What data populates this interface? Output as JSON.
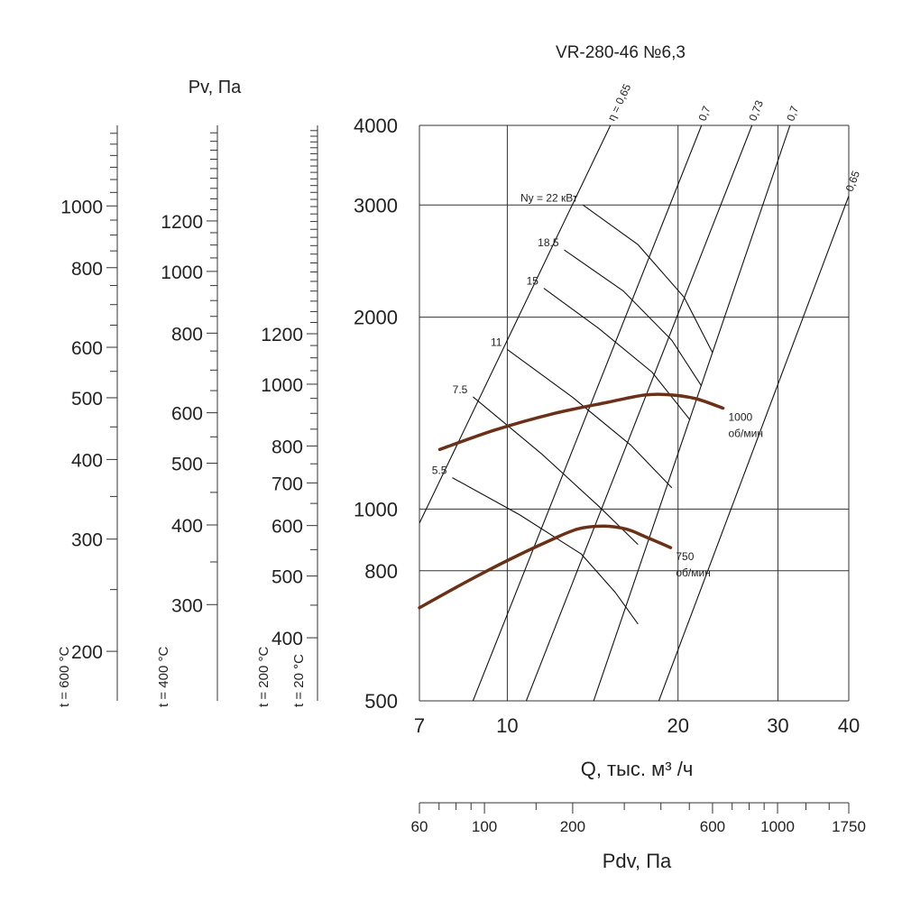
{
  "chart_data": {
    "type": "line",
    "title": "VR-280-46 №6,3",
    "x_axis": {
      "label": "Q, тыс. м³ /ч",
      "scale": "log",
      "range": [
        7,
        40
      ],
      "ticks": [
        7,
        10,
        20,
        30,
        40
      ]
    },
    "y_axis": {
      "scale": "log",
      "range": [
        500,
        4000
      ],
      "ticks": [
        500,
        800,
        1000,
        2000,
        3000,
        4000
      ]
    },
    "temperature_scales": {
      "title": "Pv, Па",
      "scales": [
        {
          "label": "t = 600 °C",
          "ticks": [
            200,
            300,
            400,
            500,
            600,
            800,
            1000
          ]
        },
        {
          "label": "t = 400 °C",
          "ticks": [
            300,
            400,
            500,
            600,
            800,
            1000,
            1200
          ]
        },
        {
          "label": "t = 200 °C",
          "ticks": [
            400,
            500,
            600,
            700,
            800,
            1000,
            1200
          ]
        },
        {
          "label": "t = 20 °C"
        }
      ]
    },
    "dynamic_pressure_scale": {
      "label": "Pdv, Па",
      "ticks": [
        60,
        100,
        200,
        600,
        1000,
        1750
      ]
    },
    "speed_curves": [
      {
        "name": "1000",
        "unit": "об/мин",
        "color": "#6b3018",
        "points": [
          [
            7.6,
            1240
          ],
          [
            9.5,
            1330
          ],
          [
            12,
            1410
          ],
          [
            15,
            1470
          ],
          [
            17.5,
            1510
          ],
          [
            19.5,
            1510
          ],
          [
            21.5,
            1490
          ],
          [
            24,
            1440
          ]
        ]
      },
      {
        "name": "750",
        "unit": "об/мин",
        "color": "#6b3018",
        "points": [
          [
            7,
            700
          ],
          [
            8.5,
            770
          ],
          [
            10,
            830
          ],
          [
            11.8,
            890
          ],
          [
            13.3,
            930
          ],
          [
            14.8,
            940
          ],
          [
            16.2,
            930
          ],
          [
            17.5,
            905
          ],
          [
            19.4,
            870
          ]
        ]
      }
    ],
    "efficiency_lines": [
      {
        "label": "η = 0,65",
        "points": [
          [
            7,
            950
          ],
          [
            15.2,
            4000
          ]
        ]
      },
      {
        "label": "0,7",
        "points": [
          [
            8.7,
            500
          ],
          [
            22,
            4000
          ]
        ]
      },
      {
        "label": "0,73",
        "points": [
          [
            10.8,
            500
          ],
          [
            27,
            4000
          ]
        ]
      },
      {
        "label": "0,7",
        "points": [
          [
            14.2,
            500
          ],
          [
            31.5,
            4000
          ]
        ]
      },
      {
        "label": "0,65",
        "points": [
          [
            18.5,
            500
          ],
          [
            40,
            3100
          ]
        ]
      }
    ],
    "power_lines": [
      {
        "label": "Nу = 22 кВт",
        "points": [
          [
            13.6,
            3000
          ],
          [
            17,
            2600
          ],
          [
            20.5,
            2150
          ],
          [
            23,
            1760
          ]
        ]
      },
      {
        "label": "18.5",
        "points": [
          [
            12.6,
            2550
          ],
          [
            16,
            2200
          ],
          [
            19.5,
            1840
          ],
          [
            22,
            1560
          ]
        ]
      },
      {
        "label": "15",
        "points": [
          [
            11.6,
            2220
          ],
          [
            14.5,
            1920
          ],
          [
            18,
            1640
          ],
          [
            21,
            1380
          ]
        ]
      },
      {
        "label": "11",
        "points": [
          [
            10,
            1780
          ],
          [
            13,
            1500
          ],
          [
            16.5,
            1260
          ],
          [
            19.5,
            1080
          ]
        ]
      },
      {
        "label": "7.5",
        "points": [
          [
            8.7,
            1500
          ],
          [
            11.5,
            1220
          ],
          [
            14.5,
            1010
          ],
          [
            17,
            880
          ]
        ]
      },
      {
        "label": "5.5",
        "points": [
          [
            8,
            1120
          ],
          [
            10.5,
            980
          ],
          [
            13.5,
            850
          ],
          [
            15.5,
            740
          ],
          [
            17,
            660
          ]
        ]
      }
    ]
  }
}
